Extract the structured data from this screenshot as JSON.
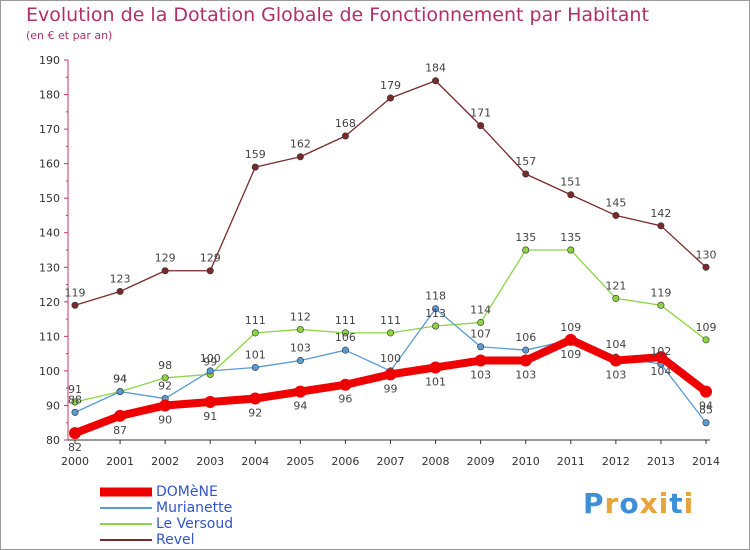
{
  "title": "Evolution de la Dotation Globale de Fonctionnement par Habitant",
  "subtitle": "(en € et par an)",
  "logo": {
    "text": "Proxiti",
    "letter_colors": [
      "#3d8fd6",
      "#e8a33a",
      "#3d8fd6",
      "#e8a33a",
      "#e8a33a",
      "#3d8fd6",
      "#e8a33a"
    ]
  },
  "chart_data": {
    "type": "line",
    "x": [
      "2000",
      "2001",
      "2002",
      "2003",
      "2004",
      "2005",
      "2006",
      "2007",
      "2008",
      "2009",
      "2010",
      "2011",
      "2012",
      "2013",
      "2014"
    ],
    "ylim": [
      80,
      190
    ],
    "yticks": [
      "80",
      "90",
      "100",
      "110",
      "120",
      "130",
      "140",
      "150",
      "160",
      "170",
      "180",
      "190"
    ],
    "grid": false,
    "legend": "bottom-left",
    "series": [
      {
        "name": "DOMèNE",
        "color": "#ee0000",
        "values": [
          82,
          87,
          90,
          91,
          92,
          94,
          96,
          99,
          101,
          103,
          103,
          109,
          103,
          104,
          94
        ]
      },
      {
        "name": "Murianette",
        "color": "#5b9bd5",
        "values": [
          88,
          94,
          92,
          100,
          101,
          103,
          106,
          100,
          118,
          107,
          106,
          109,
          104,
          102,
          85
        ]
      },
      {
        "name": "Le Versoud",
        "color": "#8cd444",
        "values": [
          91,
          94,
          98,
          99,
          111,
          112,
          111,
          111,
          113,
          114,
          135,
          135,
          121,
          119,
          109
        ]
      },
      {
        "name": "Revel",
        "color": "#7a2a2a",
        "values": [
          119,
          123,
          129,
          129,
          159,
          162,
          168,
          179,
          184,
          171,
          157,
          151,
          145,
          142,
          130
        ]
      }
    ]
  }
}
